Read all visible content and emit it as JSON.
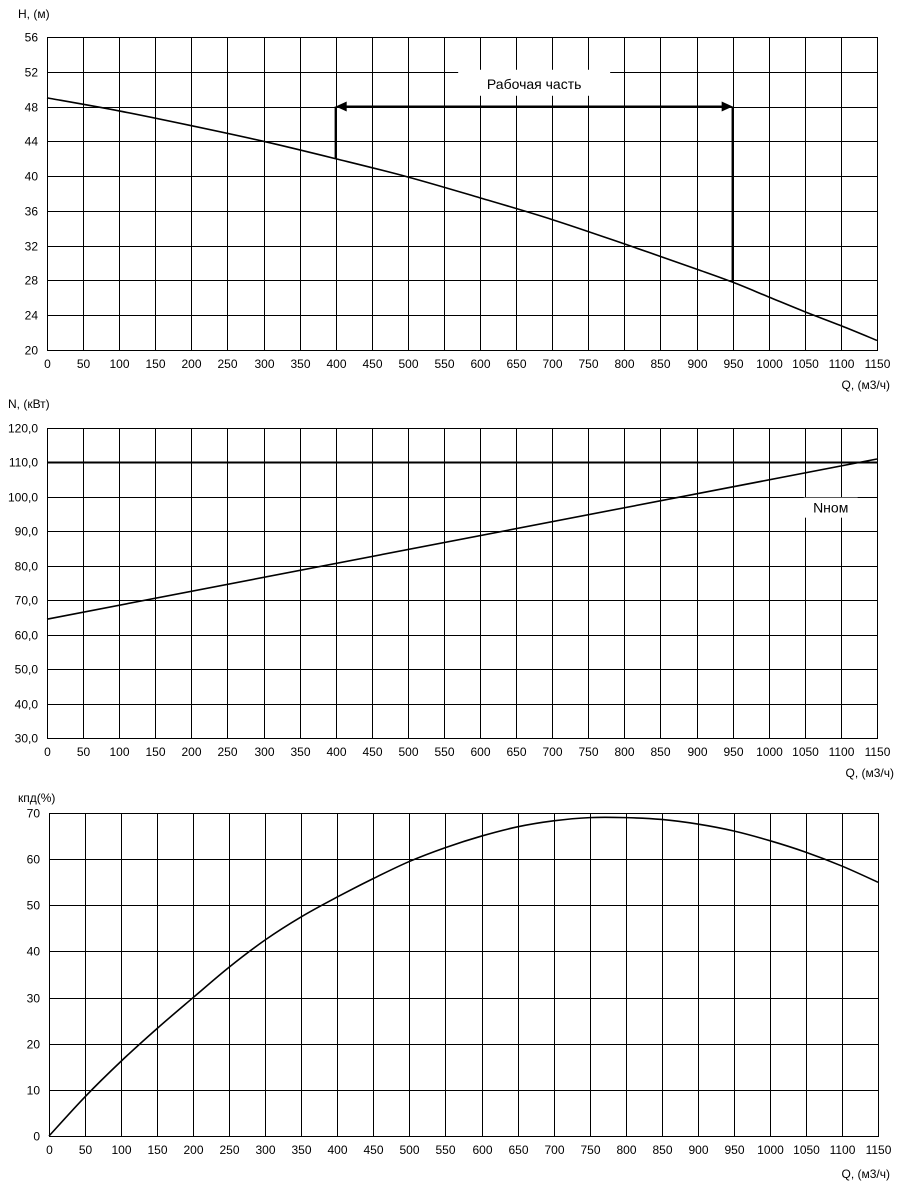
{
  "chart_data": [
    {
      "type": "line",
      "ylabel": "H, (м)",
      "xlabel": "Q, (м3/ч)",
      "xlim": [
        0,
        1150
      ],
      "ylim": [
        20,
        56
      ],
      "xticks": [
        "0",
        "50",
        "100",
        "150",
        "200",
        "250",
        "300",
        "350",
        "400",
        "450",
        "500",
        "550",
        "600",
        "650",
        "700",
        "750",
        "800",
        "850",
        "900",
        "950",
        "1000",
        "1050",
        "1100",
        "1150"
      ],
      "yticks": [
        "20",
        "24",
        "28",
        "32",
        "36",
        "40",
        "44",
        "48",
        "52",
        "56"
      ],
      "grid": true,
      "series": [
        {
          "x": [
            0,
            100,
            200,
            300,
            400,
            500,
            600,
            700,
            800,
            900,
            950,
            1000,
            1050,
            1100,
            1150
          ],
          "values": [
            49.0,
            47.5,
            45.8,
            44.0,
            42.0,
            39.9,
            37.5,
            35.0,
            32.2,
            29.3,
            27.8,
            26.1,
            24.4,
            22.8,
            21.1
          ]
        }
      ],
      "annotations": [
        {
          "text": "Рабочая часть",
          "x_from": 400,
          "x_to": 950,
          "y": 48
        }
      ]
    },
    {
      "type": "line",
      "ylabel": "N, (кВт)",
      "xlabel": "Q, (м3/ч)",
      "xlim": [
        0,
        1150
      ],
      "ylim": [
        30,
        120
      ],
      "xticks": [
        "0",
        "50",
        "100",
        "150",
        "200",
        "250",
        "300",
        "350",
        "400",
        "450",
        "500",
        "550",
        "600",
        "650",
        "700",
        "750",
        "800",
        "850",
        "900",
        "950",
        "1000",
        "1050",
        "1100",
        "1150"
      ],
      "yticks": [
        "30,0",
        "40,0",
        "50,0",
        "60,0",
        "70,0",
        "80,0",
        "90,0",
        "100,0",
        "110,0",
        "120,0"
      ],
      "grid": true,
      "series": [
        {
          "x": [
            0,
            1150
          ],
          "values": [
            64.5,
            111.0
          ]
        },
        {
          "name": "Nном",
          "x": [
            0,
            1150
          ],
          "values": [
            110.0,
            110.0
          ]
        }
      ],
      "annotations": [
        {
          "text": "Nном",
          "x": 1090,
          "y": 96
        }
      ]
    },
    {
      "type": "line",
      "ylabel": "кпд(%)",
      "xlabel": "Q, (м3/ч)",
      "xlim": [
        0,
        1150
      ],
      "ylim": [
        0,
        70
      ],
      "xticks": [
        "0",
        "50",
        "100",
        "150",
        "200",
        "250",
        "300",
        "350",
        "400",
        "450",
        "500",
        "550",
        "600",
        "650",
        "700",
        "750",
        "800",
        "850",
        "900",
        "950",
        "1000",
        "1050",
        "1100",
        "1150"
      ],
      "yticks": [
        "0",
        "10",
        "20",
        "30",
        "40",
        "50",
        "60",
        "70"
      ],
      "grid": true,
      "series": [
        {
          "x": [
            0,
            50,
            100,
            150,
            200,
            250,
            300,
            350,
            400,
            450,
            500,
            550,
            600,
            650,
            700,
            750,
            800,
            850,
            900,
            950,
            1000,
            1050,
            1100,
            1150
          ],
          "values": [
            0,
            8.5,
            16.2,
            23.3,
            30.0,
            36.6,
            42.5,
            47.5,
            51.8,
            55.8,
            59.5,
            62.5,
            65.0,
            67.0,
            68.3,
            69.0,
            69.0,
            68.6,
            67.6,
            66.1,
            64.0,
            61.5,
            58.5,
            55.0
          ]
        }
      ]
    }
  ]
}
